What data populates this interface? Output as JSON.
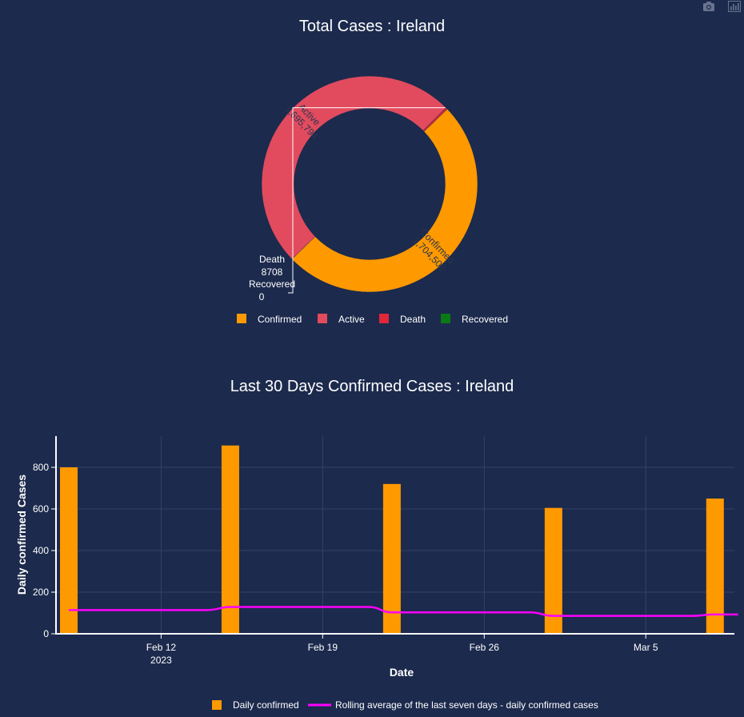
{
  "toolbar": {
    "icons": [
      "camera-icon",
      "bar-chart-icon"
    ]
  },
  "chart_data": [
    {
      "type": "pie",
      "title": "Total Cases : Ireland",
      "hole": 0.7,
      "labels": [
        "Confirmed",
        "Active",
        "Death",
        "Recovered"
      ],
      "values": [
        1704502,
        1695794,
        8708,
        0
      ],
      "display_values": [
        "1,704,502",
        "1,695,794",
        "8708",
        "0"
      ],
      "colors": [
        "#ff9900",
        "#e24b5e",
        "#e3263a",
        "#0a7a14"
      ],
      "legend_position": "bottom"
    },
    {
      "type": "bar",
      "title": "Last 30 Days Confirmed Cases : Ireland",
      "xlabel": "Date",
      "ylabel": "Daily confirmed Cases",
      "x_ticks": [
        {
          "date": "2023-02-12",
          "label": "Feb 12",
          "sublabel": "2023"
        },
        {
          "date": "2023-02-19",
          "label": "Feb 19",
          "sublabel": ""
        },
        {
          "date": "2023-02-26",
          "label": "Feb 26",
          "sublabel": ""
        },
        {
          "date": "2023-03-05",
          "label": "Mar 5",
          "sublabel": ""
        }
      ],
      "y_ticks": [
        0,
        200,
        400,
        600,
        800
      ],
      "xlim": [
        "2023-02-08",
        "2023-03-11"
      ],
      "ylim": [
        0,
        950
      ],
      "grid": true,
      "legend_position": "bottom",
      "series": [
        {
          "name": "Daily confirmed",
          "type": "bar",
          "color": "#ff9900",
          "x": [
            "2023-02-08",
            "2023-02-15",
            "2023-02-22",
            "2023-03-01",
            "2023-03-08"
          ],
          "values": [
            800,
            905,
            720,
            605,
            650
          ]
        },
        {
          "name": "Rolling average of the last seven days - daily confirmed cases",
          "type": "line",
          "color": "#ff00ff",
          "x": [
            "2023-02-08",
            "2023-02-09",
            "2023-02-10",
            "2023-02-11",
            "2023-02-12",
            "2023-02-13",
            "2023-02-14",
            "2023-02-15",
            "2023-02-16",
            "2023-02-17",
            "2023-02-18",
            "2023-02-19",
            "2023-02-20",
            "2023-02-21",
            "2023-02-22",
            "2023-02-23",
            "2023-02-24",
            "2023-02-25",
            "2023-02-26",
            "2023-02-27",
            "2023-02-28",
            "2023-03-01",
            "2023-03-02",
            "2023-03-03",
            "2023-03-04",
            "2023-03-05",
            "2023-03-06",
            "2023-03-07",
            "2023-03-08",
            "2023-03-09"
          ],
          "values": [
            114,
            114,
            114,
            114,
            114,
            114,
            114,
            129,
            129,
            129,
            129,
            129,
            129,
            129,
            103,
            103,
            103,
            103,
            103,
            103,
            103,
            86,
            86,
            86,
            86,
            86,
            86,
            86,
            93,
            93
          ]
        }
      ]
    }
  ]
}
